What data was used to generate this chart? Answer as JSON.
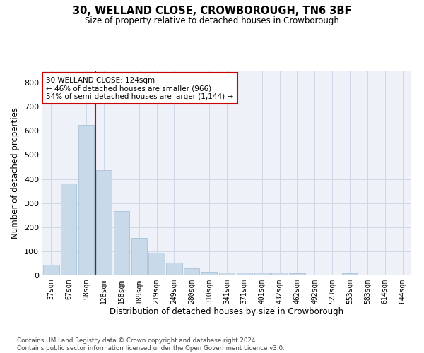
{
  "title": "30, WELLAND CLOSE, CROWBOROUGH, TN6 3BF",
  "subtitle": "Size of property relative to detached houses in Crowborough",
  "xlabel": "Distribution of detached houses by size in Crowborough",
  "ylabel": "Number of detached properties",
  "bins": [
    "37sqm",
    "67sqm",
    "98sqm",
    "128sqm",
    "158sqm",
    "189sqm",
    "219sqm",
    "249sqm",
    "280sqm",
    "310sqm",
    "341sqm",
    "371sqm",
    "401sqm",
    "432sqm",
    "462sqm",
    "492sqm",
    "523sqm",
    "553sqm",
    "583sqm",
    "614sqm",
    "644sqm"
  ],
  "values": [
    43,
    382,
    625,
    438,
    268,
    155,
    95,
    52,
    28,
    16,
    11,
    11,
    11,
    11,
    8,
    0,
    0,
    8,
    0,
    0,
    0
  ],
  "bar_color": "#c8d9ea",
  "bar_edgecolor": "#a0bcd4",
  "red_line_index": 3,
  "annotation_text": "30 WELLAND CLOSE: 124sqm\n← 46% of detached houses are smaller (966)\n54% of semi-detached houses are larger (1,144) →",
  "annotation_box_color": "#ffffff",
  "annotation_box_edgecolor": "#cc0000",
  "grid_color": "#d0d8e8",
  "background_color": "#eef2f8",
  "footnote": "Contains HM Land Registry data © Crown copyright and database right 2024.\nContains public sector information licensed under the Open Government Licence v3.0.",
  "ylim": [
    0,
    850
  ],
  "yticks": [
    0,
    100,
    200,
    300,
    400,
    500,
    600,
    700,
    800
  ]
}
